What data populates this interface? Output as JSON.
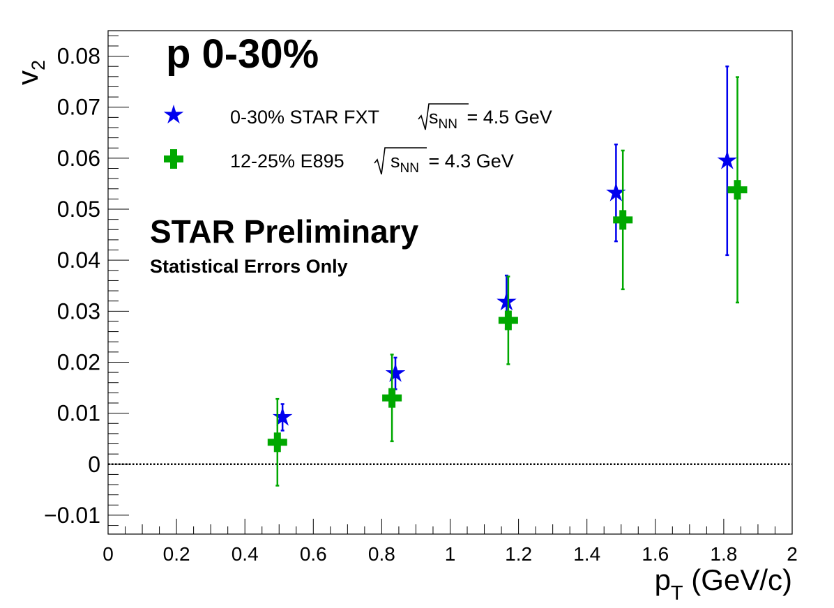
{
  "chart_data": {
    "type": "scatter",
    "xlabel_main": "p",
    "xlabel_sub": "T",
    "xlabel_unit": " (GeV/c)",
    "ylabel_main": "v",
    "ylabel_sub": "2",
    "xlim": [
      0,
      2
    ],
    "ylim": [
      -0.0137,
      0.085
    ],
    "x_ticks": [
      0,
      0.2,
      0.4,
      0.6,
      0.8,
      1,
      1.2,
      1.4,
      1.6,
      1.8,
      2
    ],
    "x_tick_labels": [
      "0",
      "0.2",
      "0.4",
      "0.6",
      "0.8",
      "1",
      "1.2",
      "1.4",
      "1.6",
      "1.8",
      "2"
    ],
    "y_ticks": [
      -0.01,
      0,
      0.01,
      0.02,
      0.03,
      0.04,
      0.05,
      0.06,
      0.07,
      0.08
    ],
    "y_tick_labels": [
      "−0.01",
      "0",
      "0.01",
      "0.02",
      "0.03",
      "0.04",
      "0.05",
      "0.06",
      "0.07",
      "0.08"
    ],
    "reference_line_y": 0,
    "grid": false,
    "legend_position": "top-left",
    "annotations": {
      "particle": "p 0-30%",
      "preliminary": "STAR Preliminary",
      "errors_note": "Statistical Errors Only"
    },
    "series": [
      {
        "name": "0-30% STAR FXT",
        "energy_prefix": "s",
        "energy_sub": "NN",
        "energy_suffix": " = 4.5 GeV",
        "marker": "star",
        "color": "#0000ee",
        "points": [
          {
            "x": 0.51,
            "y": 0.0092,
            "err": 0.0026
          },
          {
            "x": 0.84,
            "y": 0.0178,
            "err": 0.0031
          },
          {
            "x": 1.165,
            "y": 0.0318,
            "err": 0.0052
          },
          {
            "x": 1.485,
            "y": 0.0532,
            "err": 0.0095
          },
          {
            "x": 1.81,
            "y": 0.0595,
            "err": 0.0185
          }
        ]
      },
      {
        "name": "12-25% E895",
        "energy_prefix": "s",
        "energy_sub": "NN",
        "energy_suffix": " = 4.3 GeV",
        "marker": "cross",
        "color": "#00a800",
        "points": [
          {
            "x": 0.495,
            "y": 0.0043,
            "err": 0.0085
          },
          {
            "x": 0.83,
            "y": 0.013,
            "err": 0.0085
          },
          {
            "x": 1.17,
            "y": 0.0282,
            "err": 0.0086
          },
          {
            "x": 1.505,
            "y": 0.0479,
            "err": 0.0136
          },
          {
            "x": 1.84,
            "y": 0.0538,
            "err": 0.0221
          }
        ]
      }
    ]
  }
}
